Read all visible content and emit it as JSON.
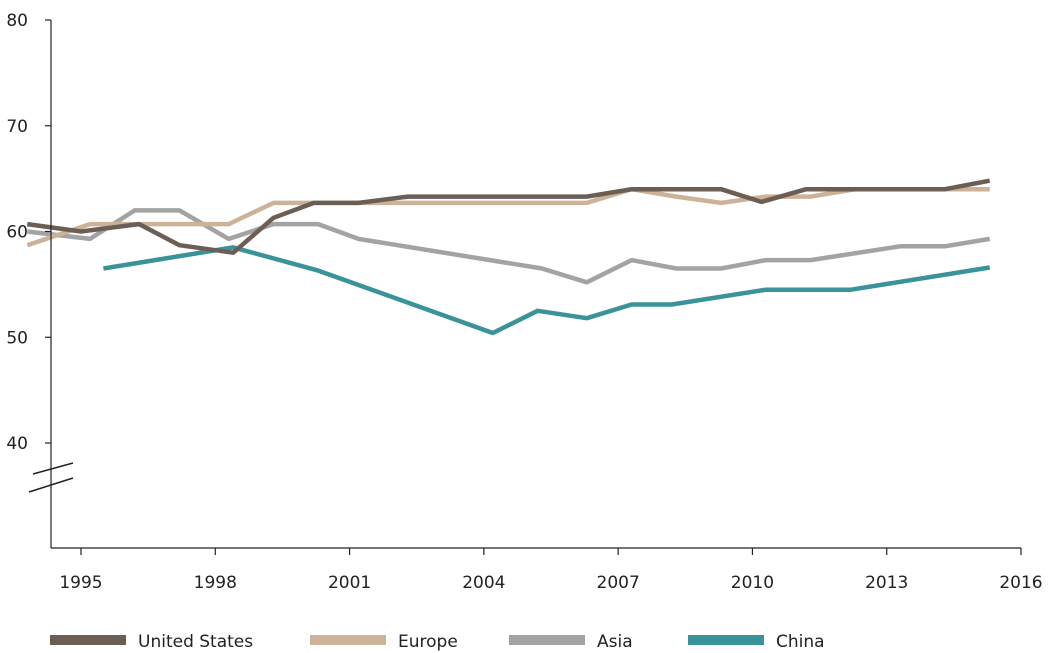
{
  "chart_data": {
    "type": "line",
    "title": "",
    "xlabel": "",
    "ylabel": "",
    "xlim": [
      1993.7,
      2016
    ],
    "ylim": [
      30,
      80
    ],
    "axis_break": true,
    "grid": false,
    "legend_position": "bottom",
    "x_ticks": [
      1995,
      1998,
      2001,
      2004,
      2007,
      2010,
      2013,
      2016
    ],
    "x_tick_labels": [
      "1995",
      "1998",
      "2001",
      "2004",
      "2007",
      "2010",
      "2013",
      "2016"
    ],
    "y_ticks": [
      40,
      50,
      60,
      70,
      80
    ],
    "y_tick_labels": [
      "40",
      "50",
      "60",
      "70",
      "80"
    ],
    "series": [
      {
        "name": "United States",
        "color": "#6b5f55",
        "x": [
          1993.8,
          1995,
          1996.3,
          1997.2,
          1998.4,
          1999.3,
          2000.2,
          2001.2,
          2002.3,
          2003.4,
          2004.3,
          2005.3,
          2006.3,
          2007.3,
          2008.2,
          2009.3,
          2010.2,
          2011.2,
          2012.3,
          2013.3,
          2014.3,
          2015.3
        ],
        "values": [
          60.7,
          60.0,
          60.7,
          58.7,
          58.0,
          61.3,
          62.7,
          62.7,
          63.3,
          63.3,
          63.3,
          63.3,
          63.3,
          64.0,
          64.0,
          64.0,
          62.8,
          64.0,
          64.0,
          64.0,
          64.0,
          64.8
        ]
      },
      {
        "name": "Europe",
        "color": "#cdb29a",
        "x": [
          1993.8,
          1995.2,
          1996.3,
          1997.3,
          1998.3,
          1999.3,
          2000.3,
          2001.3,
          2002.3,
          2003.3,
          2004.3,
          2005.3,
          2006.3,
          2007.3,
          2008.3,
          2009.3,
          2010.3,
          2011.3,
          2012.3,
          2013.3,
          2014.3,
          2015.3
        ],
        "values": [
          58.7,
          60.7,
          60.7,
          60.7,
          60.7,
          62.7,
          62.7,
          62.7,
          62.7,
          62.7,
          62.7,
          62.7,
          62.7,
          64.0,
          63.3,
          62.7,
          63.3,
          63.3,
          64.0,
          64.0,
          64.0,
          64.0
        ]
      },
      {
        "name": "Asia",
        "color": "#a3a3a3",
        "x": [
          1993.8,
          1995.2,
          1996.2,
          1997.2,
          1998.3,
          1999.3,
          2000.3,
          2001.2,
          2005.3,
          2006.3,
          2007.3,
          2008.3,
          2009.3,
          2010.3,
          2011.3,
          2013.3,
          2014.3,
          2015.3
        ],
        "values": [
          60.0,
          59.3,
          62.0,
          62.0,
          59.3,
          60.7,
          60.7,
          59.3,
          56.5,
          55.2,
          57.3,
          56.5,
          56.5,
          57.3,
          57.3,
          58.6,
          58.6,
          59.3
        ]
      },
      {
        "name": "China",
        "color": "#3a9399",
        "x": [
          1995.5,
          1998.4,
          2000.3,
          2004.2,
          2005.2,
          2006.3,
          2007.3,
          2008.2,
          2010.3,
          2012.2,
          2015.3
        ],
        "values": [
          56.5,
          58.5,
          56.3,
          50.4,
          52.5,
          51.8,
          53.1,
          53.1,
          54.5,
          54.5,
          56.6
        ]
      }
    ]
  }
}
